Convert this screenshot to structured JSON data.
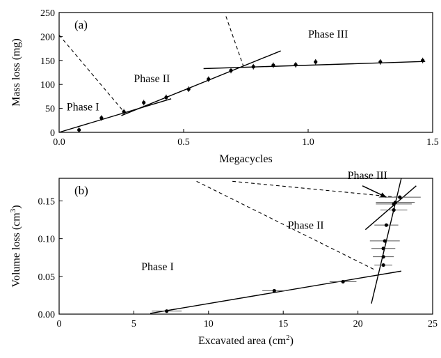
{
  "chart_data": [
    {
      "type": "scatter",
      "panel_label": "(a)",
      "xlabel": "Megacycles",
      "ylabel": "Mass loss (mg)",
      "xlim": [
        0,
        1.5
      ],
      "ylim": [
        0,
        250
      ],
      "xticks": [
        "0.0",
        "0.5",
        "1.0",
        "1.5"
      ],
      "yticks": [
        "0",
        "50",
        "100",
        "150",
        "200",
        "250"
      ],
      "grid": false,
      "points": [
        {
          "x": 0.08,
          "y": 5
        },
        {
          "x": 0.17,
          "y": 30
        },
        {
          "x": 0.26,
          "y": 43
        },
        {
          "x": 0.34,
          "y": 62
        },
        {
          "x": 0.43,
          "y": 73
        },
        {
          "x": 0.52,
          "y": 90
        },
        {
          "x": 0.6,
          "y": 111
        },
        {
          "x": 0.69,
          "y": 129
        },
        {
          "x": 0.78,
          "y": 137
        },
        {
          "x": 0.86,
          "y": 140
        },
        {
          "x": 0.95,
          "y": 141
        },
        {
          "x": 1.03,
          "y": 147
        },
        {
          "x": 1.29,
          "y": 147
        },
        {
          "x": 1.46,
          "y": 150
        }
      ],
      "fit_lines": [
        {
          "x": [
            0.0,
            0.45
          ],
          "y": [
            0,
            70
          ]
        },
        {
          "x": [
            0.25,
            0.89
          ],
          "y": [
            35,
            170
          ]
        },
        {
          "x": [
            0.58,
            1.47
          ],
          "y": [
            133,
            148
          ]
        }
      ],
      "dashed_lines": [
        {
          "x": [
            0.0,
            0.26
          ],
          "y": [
            203,
            43
          ]
        },
        {
          "x": [
            0.67,
            0.74
          ],
          "y": [
            242,
            138
          ]
        }
      ],
      "annotations": [
        {
          "text": "Phase I",
          "x": 0.03,
          "y": 46
        },
        {
          "text": "Phase II",
          "x": 0.3,
          "y": 105
        },
        {
          "text": "Phase III",
          "x": 1.0,
          "y": 198
        }
      ]
    },
    {
      "type": "scatter",
      "panel_label": "(b)",
      "xlabel": "Excavated area (cm",
      "xlabel_sup": "2",
      "xlabel_end": ")",
      "ylabel": "Volume loss (cm",
      "ylabel_sup": "3",
      "ylabel_end": ")",
      "xlim": [
        0,
        25
      ],
      "ylim": [
        0,
        0.18
      ],
      "xticks": [
        "0",
        "5",
        "10",
        "15",
        "20",
        "25"
      ],
      "yticks": [
        "0.00",
        "0.05",
        "0.10",
        "0.15"
      ],
      "grid": false,
      "points": [
        {
          "x": 7.2,
          "y": 0.004,
          "xerr": 1.0
        },
        {
          "x": 14.4,
          "y": 0.031,
          "xerr": 0.8
        },
        {
          "x": 19.0,
          "y": 0.043,
          "xerr": 0.9
        },
        {
          "x": 21.7,
          "y": 0.065,
          "xerr": 0.6
        },
        {
          "x": 21.7,
          "y": 0.076,
          "xerr": 0.7
        },
        {
          "x": 21.7,
          "y": 0.087,
          "xerr": 0.8
        },
        {
          "x": 21.8,
          "y": 0.097,
          "xerr": 1.0
        },
        {
          "x": 21.9,
          "y": 0.118,
          "xerr": 0.8
        },
        {
          "x": 22.4,
          "y": 0.138,
          "xerr": 0.9
        },
        {
          "x": 22.4,
          "y": 0.146,
          "xerr": 1.2
        },
        {
          "x": 22.5,
          "y": 0.148,
          "xerr": 1.3
        },
        {
          "x": 22.8,
          "y": 0.155,
          "xerr": 1.4
        }
      ],
      "fit_lines": [
        {
          "x": [
            6.1,
            22.9
          ],
          "y": [
            0.001,
            0.057
          ]
        },
        {
          "x": [
            20.9,
            22.9
          ],
          "y": [
            0.014,
            0.18
          ]
        },
        {
          "x": [
            20.5,
            23.9
          ],
          "y": [
            0.112,
            0.17
          ]
        }
      ],
      "dashed_lines": [
        {
          "x": [
            9.2,
            21.2
          ],
          "y": [
            0.176,
            0.058
          ]
        },
        {
          "x": [
            11.6,
            22.6
          ],
          "y": [
            0.176,
            0.155
          ]
        }
      ],
      "arrow": {
        "from_x": 20.3,
        "from_y": 0.17,
        "to_x": 21.9,
        "to_y": 0.155
      },
      "annotations": [
        {
          "text": "Phase I",
          "x": 5.5,
          "y": 0.058
        },
        {
          "text": "Phase II",
          "x": 15.3,
          "y": 0.113
        },
        {
          "text": "Phase III",
          "x": 19.3,
          "y": 0.179
        }
      ]
    }
  ]
}
